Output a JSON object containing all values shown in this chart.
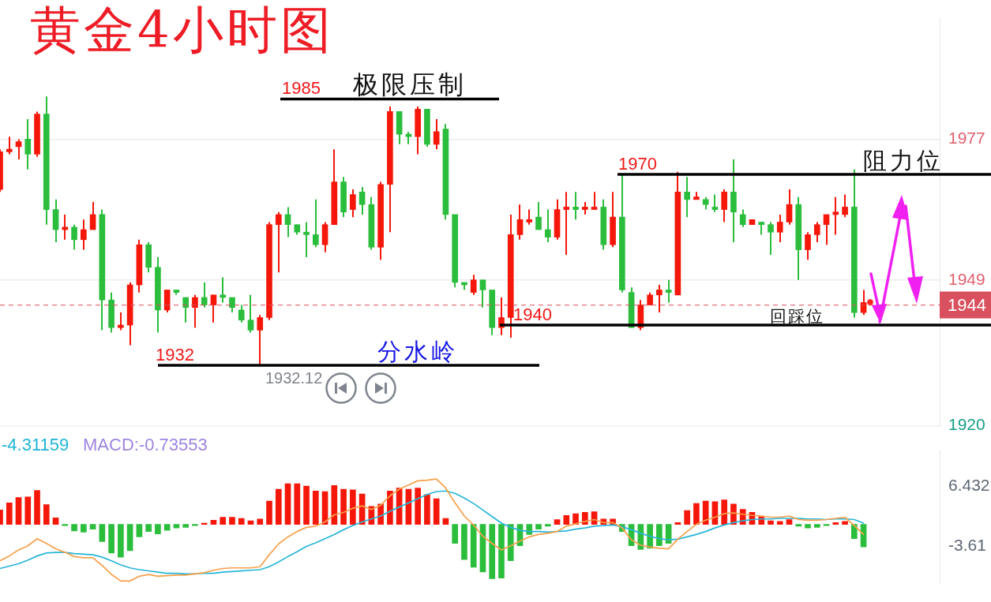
{
  "chart_data": [
    {
      "type": "candlestick",
      "title": "黄金4小时图",
      "categories": [
        null,
        null,
        null,
        null,
        null,
        null,
        null,
        null,
        null,
        null,
        null,
        null,
        null,
        null,
        null,
        null,
        null,
        null,
        null,
        null,
        null,
        null,
        null,
        null,
        null,
        null,
        null,
        null,
        null,
        null,
        null,
        null,
        null,
        null,
        null,
        null,
        null,
        null,
        null,
        null,
        null,
        null,
        null,
        null,
        null,
        null,
        null,
        null,
        null,
        null,
        null,
        null,
        null,
        null,
        null,
        null,
        null,
        null,
        null,
        null,
        null,
        null,
        null,
        null,
        null,
        null,
        null,
        null,
        null,
        null,
        null,
        null,
        null,
        null,
        null,
        null,
        null,
        null,
        null,
        null,
        null,
        null,
        null,
        null,
        null,
        null,
        null,
        null,
        null,
        null,
        null,
        null,
        null,
        null
      ],
      "ohlc": [
        [
          1967,
          1975,
          1966.5,
          1974.5
        ],
        [
          1974.5,
          1977.5,
          1974,
          1975
        ],
        [
          1975.5,
          1977,
          1973,
          1976.5
        ],
        [
          1977,
          1981,
          1971,
          1974
        ],
        [
          1974,
          1982.5,
          1973.5,
          1982
        ],
        [
          1982,
          1985.5,
          1960,
          1963
        ],
        [
          1963,
          1965,
          1956.5,
          1959
        ],
        [
          1959,
          1962,
          1957,
          1959.5
        ],
        [
          1959.5,
          1960,
          1955,
          1957
        ],
        [
          1957,
          1961,
          1955,
          1959
        ],
        [
          1959,
          1964.5,
          1959,
          1962
        ],
        [
          1962,
          1963,
          1939,
          1945
        ],
        [
          1945,
          1946.5,
          1938.5,
          1939.5
        ],
        [
          1939.5,
          1942.5,
          1939,
          1940
        ],
        [
          1940,
          1948.5,
          1936,
          1948
        ],
        [
          1948,
          1957,
          1946.5,
          1956
        ],
        [
          1956,
          1956.5,
          1950.5,
          1951.5
        ],
        [
          1951.5,
          1953.5,
          1938.5,
          1943
        ],
        [
          1943,
          1947,
          1942.5,
          1947
        ],
        [
          1947,
          1947,
          1946,
          1946.5
        ],
        [
          1945.5,
          1945.5,
          1940.5,
          1943.5
        ],
        [
          1943.5,
          1946,
          1939.5,
          1945.5
        ],
        [
          1945.5,
          1948.5,
          1943.5,
          1944
        ],
        [
          1944,
          1946,
          1940.5,
          1946
        ],
        [
          1946,
          1949.5,
          1944.5,
          1945.5
        ],
        [
          1945.5,
          1945.5,
          1942.5,
          1943.5
        ],
        [
          1943,
          1944,
          1940.5,
          1941
        ],
        [
          1941,
          1946,
          1938.5,
          1939
        ],
        [
          1939,
          1942,
          1932.12,
          1941.5
        ],
        [
          1941.5,
          1960.5,
          1941,
          1960
        ],
        [
          1960,
          1962.5,
          1950.5,
          1962
        ],
        [
          1962,
          1963.5,
          1957.5,
          1960
        ],
        [
          1960,
          1960,
          1958,
          1958.5
        ],
        [
          1958.5,
          1960.5,
          1953.5,
          1958
        ],
        [
          1958,
          1965,
          1955.5,
          1956
        ],
        [
          1956,
          1960.5,
          1954.5,
          1960
        ],
        [
          1960,
          1975,
          1960,
          1968.5
        ],
        [
          1968.5,
          1969.5,
          1961.5,
          1962.5
        ],
        [
          1963,
          1967,
          1961.5,
          1966
        ],
        [
          1966.5,
          1967.5,
          1962,
          1964
        ],
        [
          1964,
          1965.5,
          1955,
          1955.5
        ],
        [
          1955.5,
          1968.5,
          1953,
          1968
        ],
        [
          1968,
          1983.5,
          1958.5,
          1982.5
        ],
        [
          1982.5,
          1982.5,
          1976,
          1978
        ],
        [
          1978,
          1978.5,
          1976,
          1977.5
        ],
        [
          1977.5,
          1983.5,
          1974,
          1983
        ],
        [
          1983,
          1983,
          1975.5,
          1976
        ],
        [
          1976,
          1981,
          1975,
          1978.5
        ],
        [
          1979,
          1980,
          1961,
          1962
        ],
        [
          1962,
          1962,
          1947.5,
          1948.5
        ],
        [
          1948.5,
          1948.5,
          1947,
          1948
        ],
        [
          1946.5,
          1950,
          1946,
          1949
        ],
        [
          1949,
          1949,
          1943.5,
          1947
        ],
        [
          1947,
          1947,
          1938,
          1939.5
        ],
        [
          1939.5,
          1945.5,
          1938,
          1941.5
        ],
        [
          1941.5,
          1962,
          1937.5,
          1958
        ],
        [
          1958,
          1964,
          1957,
          1961
        ],
        [
          1960.5,
          1963,
          1960,
          1961
        ],
        [
          1961.5,
          1964.5,
          1959,
          1959
        ],
        [
          1959,
          1963,
          1956.5,
          1957.5
        ],
        [
          1957.5,
          1965,
          1957,
          1963
        ],
        [
          1963,
          1966.5,
          1954,
          1963.5
        ],
        [
          1963.5,
          1966.5,
          1961,
          1963
        ],
        [
          1963,
          1964.5,
          1962,
          1963.5
        ],
        [
          1963,
          1966.5,
          1963,
          1963.5
        ],
        [
          1963.5,
          1965,
          1955,
          1956
        ],
        [
          1956,
          1966.5,
          1955.5,
          1961.5
        ],
        [
          1961.5,
          1970,
          1946.5,
          1947
        ],
        [
          1946.5,
          1947.5,
          1939.5,
          1939.5
        ],
        [
          1939.5,
          1945,
          1939,
          1944
        ],
        [
          1944,
          1946.5,
          1944,
          1946
        ],
        [
          1946,
          1948,
          1942.5,
          1947
        ],
        [
          1947,
          1949,
          1944.5,
          1946.5
        ],
        [
          1946,
          1970.5,
          1946,
          1966.5
        ],
        [
          1966.5,
          1969.5,
          1961.5,
          1965
        ],
        [
          1965,
          1966.5,
          1965,
          1965.5
        ],
        [
          1965,
          1965.5,
          1963,
          1964
        ],
        [
          1963.5,
          1966,
          1962.5,
          1963
        ],
        [
          1963,
          1967,
          1960.5,
          1966.5
        ],
        [
          1966.5,
          1973,
          1956.5,
          1962.5
        ],
        [
          1962,
          1963,
          1959.5,
          1960
        ],
        [
          1960,
          1961,
          1960,
          1961
        ],
        [
          1960.5,
          1960.5,
          1958,
          1960
        ],
        [
          1960,
          1960.5,
          1954,
          1958.5
        ],
        [
          1958.5,
          1962,
          1956.5,
          1960.5
        ],
        [
          1960.5,
          1967,
          1960,
          1964
        ],
        [
          1964,
          1965.5,
          1949,
          1955
        ],
        [
          1955,
          1958.5,
          1953,
          1958
        ],
        [
          1958,
          1960.5,
          1956.5,
          1960
        ],
        [
          1960,
          1962,
          1956,
          1962
        ],
        [
          1962,
          1965.5,
          1958,
          1962.5
        ],
        [
          1962,
          1966,
          1961.5,
          1963.5
        ],
        [
          1963.5,
          1971,
          1941.5,
          1942.5
        ],
        [
          1942.5,
          1947,
          1942,
          1944.5
        ]
      ],
      "colors": [
        "#f5170a",
        "#f5170a",
        "#f5170a",
        "#2bbd3c",
        "#f5170a",
        "#2bbd3c",
        "#2bbd3c",
        "#f5170a",
        "#2bbd3c",
        "#f5170a",
        "#f5170a",
        "#2bbd3c",
        "#2bbd3c",
        "#f5170a",
        "#f5170a",
        "#f5170a",
        "#2bbd3c",
        "#2bbd3c",
        "#f5170a",
        "#2bbd3c",
        "#2bbd3c",
        "#f5170a",
        "#2bbd3c",
        "#f5170a",
        "#2bbd3c",
        "#2bbd3c",
        "#2bbd3c",
        "#2bbd3c",
        "#f5170a",
        "#f5170a",
        "#f5170a",
        "#2bbd3c",
        "#2bbd3c",
        "#2bbd3c",
        "#2bbd3c",
        "#f5170a",
        "#f5170a",
        "#2bbd3c",
        "#f5170a",
        "#2bbd3c",
        "#2bbd3c",
        "#f5170a",
        "#f5170a",
        "#2bbd3c",
        "#2bbd3c",
        "#f5170a",
        "#2bbd3c",
        "#f5170a",
        "#2bbd3c",
        "#2bbd3c",
        "#2bbd3c",
        "#f5170a",
        "#2bbd3c",
        "#2bbd3c",
        "#f5170a",
        "#f5170a",
        "#f5170a",
        "#f5170a",
        "#2bbd3c",
        "#2bbd3c",
        "#f5170a",
        "#f5170a",
        "#2bbd3c",
        "#f5170a",
        "#f5170a",
        "#2bbd3c",
        "#f5170a",
        "#2bbd3c",
        "#2bbd3c",
        "#f5170a",
        "#f5170a",
        "#f5170a",
        "#2bbd3c",
        "#f5170a",
        "#2bbd3c",
        "#f5170a",
        "#2bbd3c",
        "#2bbd3c",
        "#f5170a",
        "#2bbd3c",
        "#2bbd3c",
        "#f5170a",
        "#2bbd3c",
        "#2bbd3c",
        "#f5170a",
        "#f5170a",
        "#2bbd3c",
        "#f5170a",
        "#f5170a",
        "#f5170a",
        "#f5170a",
        "#f5170a",
        "#2bbd3c",
        "#f5170a"
      ],
      "ylim": [
        1920,
        2001
      ],
      "yticks": [
        1977,
        1949,
        1920
      ],
      "grid": "y",
      "tick_labels": "y",
      "ref_lines": [
        {
          "axis": "y",
          "value": 1985,
          "label": "1985",
          "color": "#000000"
        },
        {
          "axis": "y",
          "value": 1970,
          "label": "1970",
          "color": "#000000"
        },
        {
          "axis": "y",
          "value": 1940,
          "label": "1940",
          "color": "#000000"
        },
        {
          "axis": "y",
          "value": 1932,
          "label": "1932",
          "color": "#000000"
        },
        {
          "axis": "y",
          "value": 1944,
          "label": "1944",
          "color": "#d9505e",
          "line_style": "dashed"
        }
      ],
      "annotations": [
        {
          "text": "极限压制",
          "y": 1985
        },
        {
          "text": "阻力位",
          "y": 1970
        },
        {
          "text": "回踩位",
          "y": 1940
        },
        {
          "text": "分水岭",
          "y": 1932
        },
        {
          "text": "1932.12",
          "y": 1932.12
        }
      ]
    },
    {
      "type": "bar",
      "categories": [
        null,
        null,
        null,
        null,
        null,
        null,
        null,
        null,
        null,
        null,
        null,
        null,
        null,
        null,
        null,
        null,
        null,
        null,
        null,
        null,
        null,
        null,
        null,
        null,
        null,
        null,
        null,
        null,
        null,
        null,
        null,
        null,
        null,
        null,
        null,
        null,
        null,
        null,
        null,
        null,
        null,
        null,
        null,
        null,
        null,
        null,
        null,
        null,
        null,
        null,
        null,
        null,
        null,
        null,
        null,
        null,
        null,
        null,
        null,
        null,
        null,
        null,
        null,
        null,
        null,
        null,
        null,
        null,
        null,
        null,
        null,
        null,
        null,
        null,
        null,
        null,
        null,
        null,
        null,
        null,
        null,
        null,
        null,
        null,
        null,
        null,
        null,
        null,
        null,
        null,
        null,
        null,
        null,
        null
      ],
      "series": [
        {
          "type": "bar",
          "colors": [
            "#f5170a",
            "#f5170a",
            "#f5170a",
            "#f5170a",
            "#f5170a",
            "#f5170a",
            "#f5170a",
            "#2bbd3c",
            "#2bbd3c",
            "#2bbd3c",
            "#2bbd3c",
            "#2bbd3c",
            "#2bbd3c",
            "#2bbd3c",
            "#2bbd3c",
            "#2bbd3c",
            "#2bbd3c",
            "#2bbd3c",
            "#2bbd3c",
            "#2bbd3c",
            "#2bbd3c",
            "#2bbd3c",
            "#f5170a",
            "#f5170a",
            "#f5170a",
            "#f5170a",
            "#f5170a",
            "#f5170a",
            "#f5170a",
            "#f5170a",
            "#f5170a",
            "#f5170a",
            "#f5170a",
            "#f5170a",
            "#f5170a",
            "#f5170a",
            "#f5170a",
            "#f5170a",
            "#f5170a",
            "#f5170a",
            "#f5170a",
            "#f5170a",
            "#f5170a",
            "#f5170a",
            "#f5170a",
            "#f5170a",
            "#f5170a",
            "#f5170a",
            "#f5170a",
            "#2bbd3c",
            "#2bbd3c",
            "#2bbd3c",
            "#2bbd3c",
            "#2bbd3c",
            "#2bbd3c",
            "#2bbd3c",
            "#2bbd3c",
            "#2bbd3c",
            "#2bbd3c",
            "#2bbd3c",
            "#f5170a",
            "#f5170a",
            "#f5170a",
            "#f5170a",
            "#f5170a",
            "#f5170a",
            "#f5170a",
            "#2bbd3c",
            "#2bbd3c",
            "#2bbd3c",
            "#2bbd3c",
            "#2bbd3c",
            "#2bbd3c",
            "#f5170a",
            "#f5170a",
            "#f5170a",
            "#f5170a",
            "#f5170a",
            "#f5170a",
            "#f5170a",
            "#f5170a",
            "#f5170a",
            "#f5170a",
            "#f5170a",
            "#f5170a",
            "#f5170a",
            "#2bbd3c",
            "#2bbd3c",
            "#2bbd3c",
            "#2bbd3c",
            "#f5170a",
            "#f5170a",
            "#2bbd3c",
            "#2bbd3c"
          ],
          "values": [
            2.4,
            3.6,
            4.5,
            4.6,
            5.7,
            3.3,
            1.1,
            -0.2,
            -1.1,
            -1.3,
            -0.8,
            -2.9,
            -4.8,
            -5.5,
            -4.4,
            -2.1,
            -1.2,
            -1.6,
            -1.0,
            -0.6,
            -0.5,
            -0.2,
            0.2,
            0.7,
            1.2,
            1.2,
            1.0,
            0.6,
            0.9,
            3.9,
            5.9,
            6.8,
            6.8,
            6.4,
            5.6,
            5.5,
            6.5,
            5.9,
            5.8,
            5.1,
            3.0,
            3.4,
            5.6,
            6.1,
            5.9,
            6.1,
            5.0,
            4.3,
            1.0,
            -3.2,
            -5.9,
            -7.2,
            -8.0,
            -9.1,
            -9.0,
            -6.1,
            -3.6,
            -1.7,
            -0.8,
            -0.3,
            0.8,
            1.5,
            1.8,
            2.0,
            2.1,
            0.9,
            0.9,
            -1.2,
            -3.6,
            -4.2,
            -4.0,
            -3.6,
            -3.2,
            0.3,
            2.3,
            3.5,
            3.9,
            3.8,
            4.1,
            3.4,
            2.5,
            2.0,
            1.3,
            0.6,
            0.5,
            0.8,
            -0.3,
            -0.6,
            -0.5,
            -0.2,
            0.3,
            0.5,
            -2.4,
            -3.8
          ]
        },
        {
          "type": "line",
          "color": "#f7a04b",
          "values": [
            -6.1,
            -5.3,
            -4.3,
            -3.6,
            -2.4,
            -3.2,
            -4.1,
            -4.7,
            -5.4,
            -5.6,
            -5.6,
            -6.9,
            -8.4,
            -9.5,
            -9.5,
            -8.7,
            -8.4,
            -8.7,
            -8.6,
            -8.5,
            -8.5,
            -8.3,
            -8.1,
            -7.7,
            -7.4,
            -7.3,
            -7.3,
            -7.3,
            -7.1,
            -5.1,
            -3.3,
            -2.1,
            -1.2,
            -0.5,
            -0.3,
            0.4,
            1.6,
            2.0,
            2.7,
            3.1,
            2.5,
            3.2,
            4.8,
            5.9,
            6.6,
            7.3,
            7.4,
            7.6,
            6.1,
            3.6,
            1.4,
            -0.1,
            -2.0,
            -3.2,
            -4.3,
            -3.6,
            -2.8,
            -2.1,
            -1.7,
            -1.5,
            -1.2,
            -0.3,
            0.1,
            0.5,
            0.8,
            0.3,
            0.3,
            -0.6,
            -2.6,
            -3.5,
            -3.8,
            -4.0,
            -4.1,
            -2.5,
            -1.2,
            0.0,
            0.7,
            1.2,
            1.8,
            1.9,
            1.7,
            1.5,
            1.4,
            1.2,
            1.2,
            1.4,
            0.8,
            0.7,
            0.7,
            0.8,
            1.0,
            1.2,
            -0.2,
            -1.7
          ]
        },
        {
          "type": "line",
          "color": "#27b6d8",
          "values": [
            -7.4,
            -7.0,
            -6.6,
            -6.0,
            -5.3,
            -4.8,
            -4.7,
            -4.7,
            -4.9,
            -5.0,
            -5.1,
            -5.5,
            -6.1,
            -6.8,
            -7.3,
            -7.6,
            -7.8,
            -8.0,
            -8.2,
            -8.2,
            -8.3,
            -8.3,
            -8.2,
            -8.2,
            -8.0,
            -7.9,
            -7.8,
            -7.7,
            -7.6,
            -7.1,
            -6.3,
            -5.4,
            -4.6,
            -3.7,
            -3.1,
            -2.4,
            -1.7,
            -0.9,
            -0.2,
            0.4,
            0.9,
            1.4,
            2.2,
            2.9,
            3.6,
            4.3,
            5.0,
            5.5,
            5.6,
            5.2,
            4.4,
            3.5,
            2.4,
            1.3,
            0.2,
            -0.5,
            -1.0,
            -1.2,
            -1.2,
            -1.3,
            -1.2,
            -1.1,
            -0.8,
            -0.6,
            -0.3,
            -0.2,
            -0.1,
            -0.4,
            -0.9,
            -1.5,
            -2.0,
            -2.4,
            -2.6,
            -2.5,
            -2.1,
            -1.7,
            -1.2,
            -0.6,
            -0.1,
            0.3,
            0.6,
            0.8,
            0.9,
            0.9,
            1.0,
            1.0,
            1.0,
            0.9,
            0.9,
            0.8,
            0.9,
            0.9,
            0.8,
            0.2
          ]
        }
      ],
      "ylim": [
        -9.9,
        12.3
      ],
      "yticks": [
        6.432,
        -3.61
      ],
      "tick_labels": "y",
      "annotations": [
        "-4.31159",
        "MACD:-0.73553"
      ]
    }
  ]
}
